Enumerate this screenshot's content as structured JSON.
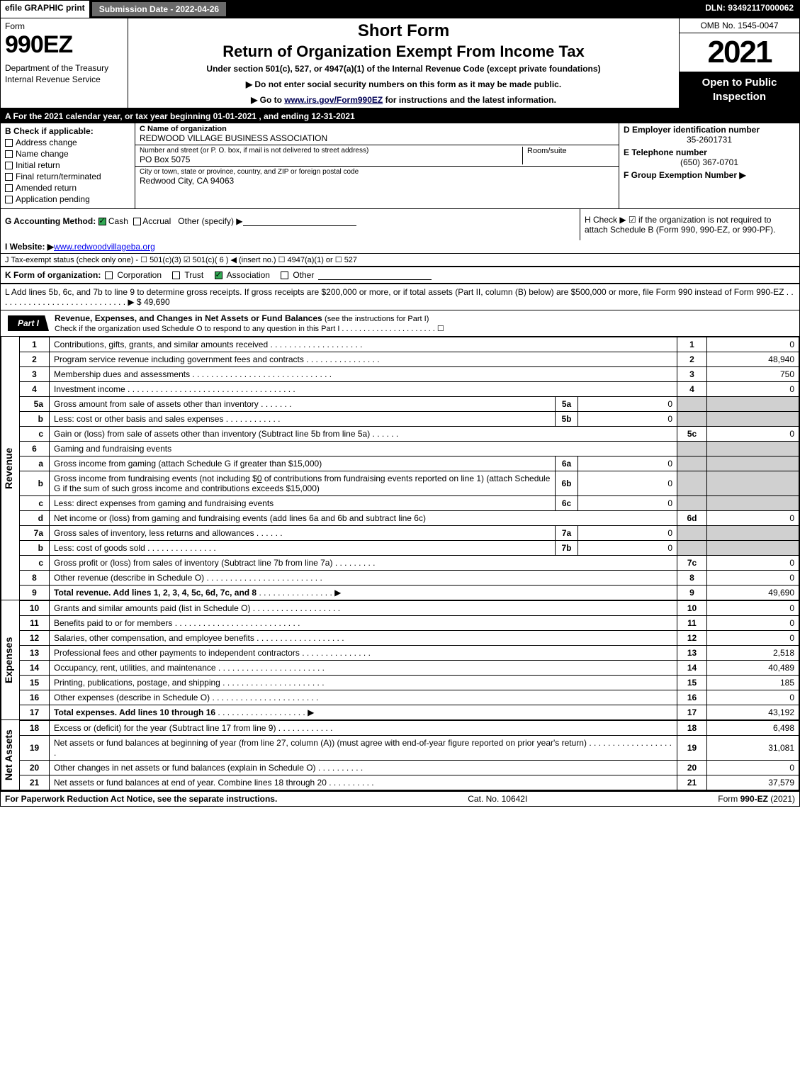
{
  "topbar": {
    "efile": "efile GRAPHIC print",
    "subdate_label": "Submission Date - 2022-04-26",
    "dln": "DLN: 93492117000062"
  },
  "header": {
    "form_label": "Form",
    "form_number": "990EZ",
    "dept": "Department of the Treasury\nInternal Revenue Service",
    "title1": "Short Form",
    "title2": "Return of Organization Exempt From Income Tax",
    "subtitle": "Under section 501(c), 527, or 4947(a)(1) of the Internal Revenue Code (except private foundations)",
    "instr1": "▶ Do not enter social security numbers on this form as it may be made public.",
    "instr2_pre": "▶ Go to ",
    "instr2_link": "www.irs.gov/Form990EZ",
    "instr2_post": " for instructions and the latest information.",
    "omb": "OMB No. 1545-0047",
    "year": "2021",
    "open": "Open to Public Inspection"
  },
  "row_a": "A  For the 2021 calendar year, or tax year beginning 01-01-2021 , and ending 12-31-2021",
  "section_b": {
    "header": "B  Check if applicable:",
    "opts": [
      "Address change",
      "Name change",
      "Initial return",
      "Final return/terminated",
      "Amended return",
      "Application pending"
    ]
  },
  "section_c": {
    "name_label": "C Name of organization",
    "name": "REDWOOD VILLAGE BUSINESS ASSOCIATION",
    "addr_label": "Number and street (or P. O. box, if mail is not delivered to street address)",
    "addr": "PO Box 5075",
    "room_label": "Room/suite",
    "city_label": "City or town, state or province, country, and ZIP or foreign postal code",
    "city": "Redwood City, CA  94063"
  },
  "section_d": {
    "label": "D Employer identification number",
    "value": "35-2601731"
  },
  "section_e": {
    "label": "E Telephone number",
    "value": "(650) 367-0701"
  },
  "section_f": {
    "label": "F Group Exemption Number  ▶"
  },
  "row_g": {
    "label": "G Accounting Method:",
    "cash": "Cash",
    "accrual": "Accrual",
    "other": "Other (specify) ▶"
  },
  "row_h": "H  Check ▶ ☑ if the organization is not required to attach Schedule B (Form 990, 990-EZ, or 990-PF).",
  "row_i": {
    "label": "I Website: ▶",
    "value": "www.redwoodvillageba.org"
  },
  "row_j": "J Tax-exempt status (check only one) - ☐ 501(c)(3)  ☑ 501(c)( 6 ) ◀ (insert no.)  ☐ 4947(a)(1) or  ☐ 527",
  "row_k": {
    "label": "K Form of organization:",
    "opts": [
      "Corporation",
      "Trust",
      "Association",
      "Other"
    ],
    "checked": 2
  },
  "row_l": {
    "text": "L Add lines 5b, 6c, and 7b to line 9 to determine gross receipts. If gross receipts are $200,000 or more, or if total assets (Part II, column (B) below) are $500,000 or more, file Form 990 instead of Form 990-EZ  .  .  .  .  .  .  .  .  .  .  .  .  .  .  .  .  .  .  .  .  .  .  .  .  .  .  .  .  ▶ $",
    "amount": "49,690"
  },
  "part1": {
    "tab": "Part I",
    "title": "Revenue, Expenses, and Changes in Net Assets or Fund Balances",
    "title_note": "(see the instructions for Part I)",
    "check_line": "Check if the organization used Schedule O to respond to any question in this Part I  .  .  .  .  .  .  .  .  .  .  .  .  .  .  .  .  .  .  .  .  .  .  ☐"
  },
  "sidebars": {
    "revenue": "Revenue",
    "expenses": "Expenses",
    "netassets": "Net Assets"
  },
  "lines": {
    "1": {
      "desc": "Contributions, gifts, grants, and similar amounts received",
      "box": "1",
      "amt": "0"
    },
    "2": {
      "desc": "Program service revenue including government fees and contracts",
      "box": "2",
      "amt": "48,940"
    },
    "3": {
      "desc": "Membership dues and assessments",
      "box": "3",
      "amt": "750"
    },
    "4": {
      "desc": "Investment income",
      "box": "4",
      "amt": "0"
    },
    "5a": {
      "desc": "Gross amount from sale of assets other than inventory",
      "sub": "5a",
      "subamt": "0"
    },
    "5b": {
      "desc": "Less: cost or other basis and sales expenses",
      "sub": "5b",
      "subamt": "0"
    },
    "5c": {
      "desc": "Gain or (loss) from sale of assets other than inventory (Subtract line 5b from line 5a)",
      "box": "5c",
      "amt": "0"
    },
    "6": {
      "desc": "Gaming and fundraising events"
    },
    "6a": {
      "desc": "Gross income from gaming (attach Schedule G if greater than $15,000)",
      "sub": "6a",
      "subamt": "0"
    },
    "6b": {
      "desc_pre": "Gross income from fundraising events (not including $",
      "desc_mid": "0",
      "desc_post": " of contributions from fundraising events reported on line 1) (attach Schedule G if the sum of such gross income and contributions exceeds $15,000)",
      "sub": "6b",
      "subamt": "0"
    },
    "6c": {
      "desc": "Less: direct expenses from gaming and fundraising events",
      "sub": "6c",
      "subamt": "0"
    },
    "6d": {
      "desc": "Net income or (loss) from gaming and fundraising events (add lines 6a and 6b and subtract line 6c)",
      "box": "6d",
      "amt": "0"
    },
    "7a": {
      "desc": "Gross sales of inventory, less returns and allowances",
      "sub": "7a",
      "subamt": "0"
    },
    "7b": {
      "desc": "Less: cost of goods sold",
      "sub": "7b",
      "subamt": "0"
    },
    "7c": {
      "desc": "Gross profit or (loss) from sales of inventory (Subtract line 7b from line 7a)",
      "box": "7c",
      "amt": "0"
    },
    "8": {
      "desc": "Other revenue (describe in Schedule O)",
      "box": "8",
      "amt": "0"
    },
    "9": {
      "desc": "Total revenue. Add lines 1, 2, 3, 4, 5c, 6d, 7c, and 8",
      "box": "9",
      "amt": "49,690",
      "bold": true,
      "arrow": true
    },
    "10": {
      "desc": "Grants and similar amounts paid (list in Schedule O)",
      "box": "10",
      "amt": "0"
    },
    "11": {
      "desc": "Benefits paid to or for members",
      "box": "11",
      "amt": "0"
    },
    "12": {
      "desc": "Salaries, other compensation, and employee benefits",
      "box": "12",
      "amt": "0"
    },
    "13": {
      "desc": "Professional fees and other payments to independent contractors",
      "box": "13",
      "amt": "2,518"
    },
    "14": {
      "desc": "Occupancy, rent, utilities, and maintenance",
      "box": "14",
      "amt": "40,489"
    },
    "15": {
      "desc": "Printing, publications, postage, and shipping",
      "box": "15",
      "amt": "185"
    },
    "16": {
      "desc": "Other expenses (describe in Schedule O)",
      "box": "16",
      "amt": "0"
    },
    "17": {
      "desc": "Total expenses. Add lines 10 through 16",
      "box": "17",
      "amt": "43,192",
      "bold": true,
      "arrow": true
    },
    "18": {
      "desc": "Excess or (deficit) for the year (Subtract line 17 from line 9)",
      "box": "18",
      "amt": "6,498"
    },
    "19": {
      "desc": "Net assets or fund balances at beginning of year (from line 27, column (A)) (must agree with end-of-year figure reported on prior year's return)",
      "box": "19",
      "amt": "31,081"
    },
    "20": {
      "desc": "Other changes in net assets or fund balances (explain in Schedule O)",
      "box": "20",
      "amt": "0"
    },
    "21": {
      "desc": "Net assets or fund balances at end of year. Combine lines 18 through 20",
      "box": "21",
      "amt": "37,579"
    }
  },
  "footer": {
    "left": "For Paperwork Reduction Act Notice, see the separate instructions.",
    "center": "Cat. No. 10642I",
    "right_pre": "Form ",
    "right_bold": "990-EZ",
    "right_post": " (2021)"
  }
}
